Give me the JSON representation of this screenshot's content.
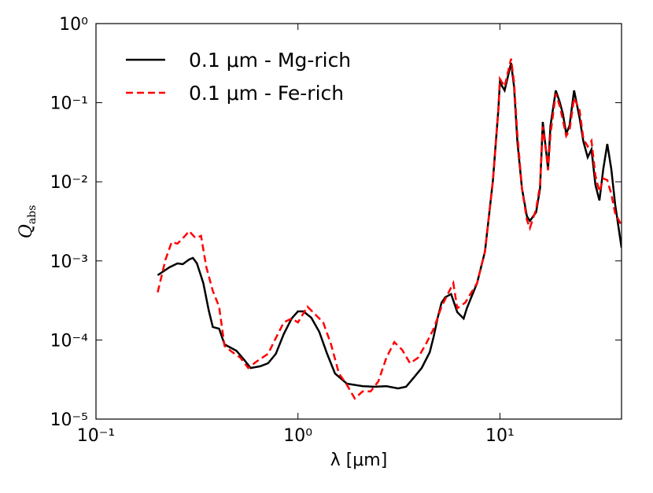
{
  "chart_data": {
    "type": "line",
    "xlabel": "λ [μm]",
    "ylabel": "Qabs",
    "xscale": "log",
    "yscale": "log",
    "xlim": [
      0.1,
      40
    ],
    "ylim": [
      1e-05,
      1
    ],
    "xticks": [
      {
        "value": 0.1,
        "label": "10⁻¹"
      },
      {
        "value": 1,
        "label": "10⁰"
      },
      {
        "value": 10,
        "label": "10¹"
      }
    ],
    "yticks": [
      {
        "value": 1e-05,
        "label": "10⁻⁵"
      },
      {
        "value": 0.0001,
        "label": "10⁻⁴"
      },
      {
        "value": 0.001,
        "label": "10⁻³"
      },
      {
        "value": 0.01,
        "label": "10⁻²"
      },
      {
        "value": 0.1,
        "label": "10⁻¹"
      },
      {
        "value": 1,
        "label": "10⁰"
      }
    ],
    "legend": "upper left",
    "series": [
      {
        "name": "0.1 μm - Mg-rich",
        "color": "#000000",
        "dash": "solid",
        "x": [
          0.202,
          0.231,
          0.253,
          0.269,
          0.289,
          0.302,
          0.316,
          0.34,
          0.362,
          0.379,
          0.407,
          0.433,
          0.496,
          0.542,
          0.583,
          0.649,
          0.711,
          0.777,
          0.851,
          0.931,
          1.0,
          1.065,
          1.165,
          1.275,
          1.395,
          1.526,
          1.747,
          2.09,
          2.39,
          2.74,
          3.13,
          3.43,
          3.75,
          4.1,
          4.49,
          4.7,
          4.91,
          5.14,
          5.37,
          5.73,
          6.15,
          6.61,
          6.86,
          7.71,
          8.43,
          9.23,
          9.82,
          10.0,
          10.55,
          11.35,
          11.75,
          12.2,
          12.86,
          13.6,
          14.07,
          15.1,
          15.8,
          16.3,
          16.9,
          17.3,
          17.8,
          18.9,
          19.8,
          20.5,
          21.3,
          22.1,
          23.3,
          24.8,
          25.9,
          27.2,
          28.4,
          29.7,
          31.1,
          32.5,
          34.0,
          35.6,
          37.2,
          40
        ],
        "values": [
          0.000659,
          0.000828,
          0.000929,
          0.000908,
          0.00104,
          0.00109,
          0.000929,
          0.000525,
          0.000235,
          0.000146,
          0.000139,
          8.8e-05,
          7.3e-05,
          5.6e-05,
          4.43e-05,
          4.64e-05,
          5.08e-05,
          6.68e-05,
          0.000119,
          0.000187,
          0.00023,
          0.00023,
          0.000191,
          0.000127,
          6.68e-05,
          3.77e-05,
          2.8e-05,
          2.61e-05,
          2.56e-05,
          2.61e-05,
          2.44e-05,
          2.56e-05,
          3.36e-05,
          4.43e-05,
          7e-05,
          0.000111,
          0.000187,
          0.000296,
          0.000348,
          0.000381,
          0.000225,
          0.000187,
          0.000252,
          0.000525,
          0.00131,
          0.0103,
          0.0807,
          0.18,
          0.143,
          0.318,
          0.16,
          0.0323,
          0.00818,
          0.00367,
          0.0032,
          0.00411,
          0.00818,
          0.0572,
          0.0257,
          0.0145,
          0.0511,
          0.143,
          0.101,
          0.0719,
          0.0406,
          0.0511,
          0.143,
          0.0641,
          0.0323,
          0.0204,
          0.0257,
          0.00917,
          0.0058,
          0.0145,
          0.0301,
          0.0145,
          0.00517,
          0.00147
        ]
      },
      {
        "name": "0.1 μm - Fe-rich",
        "color": "#ff0000",
        "dash": "dashed",
        "x": [
          0.202,
          0.221,
          0.237,
          0.253,
          0.276,
          0.289,
          0.311,
          0.331,
          0.352,
          0.379,
          0.407,
          0.433,
          0.474,
          0.519,
          0.567,
          0.621,
          0.711,
          0.777,
          0.851,
          0.931,
          1.0,
          1.114,
          1.219,
          1.334,
          1.459,
          1.596,
          1.747,
          1.91,
          2.09,
          2.29,
          2.5,
          2.74,
          3.0,
          3.28,
          3.59,
          3.93,
          4.29,
          4.7,
          5.14,
          5.62,
          5.88,
          6.15,
          6.73,
          7.71,
          8.43,
          9.23,
          9.82,
          10.0,
          10.55,
          11.35,
          11.75,
          12.2,
          12.86,
          13.6,
          14.07,
          15.1,
          15.8,
          16.3,
          16.9,
          17.3,
          17.8,
          18.9,
          19.8,
          20.5,
          21.3,
          22.1,
          23.3,
          24.8,
          25.9,
          27.2,
          28.4,
          29.7,
          31.1,
          32.5,
          34.0,
          35.6,
          37.2,
          40
        ],
        "values": [
          0.0004,
          0.00104,
          0.00173,
          0.00165,
          0.00207,
          0.00238,
          0.00195,
          0.00207,
          0.000828,
          0.000417,
          0.000264,
          8.4e-05,
          7e-05,
          5.96e-05,
          4.43e-05,
          5.3e-05,
          6.68e-05,
          0.000106,
          0.000167,
          0.000187,
          0.000167,
          0.000264,
          0.00021,
          0.000167,
          8.8e-05,
          3.77e-05,
          2.71e-05,
          1.82e-05,
          2.24e-05,
          2.24e-05,
          3e-05,
          5.96e-05,
          9.4e-05,
          7.5e-05,
          5.08e-05,
          5.96e-05,
          8.8e-05,
          0.000139,
          0.000264,
          0.000417,
          0.000525,
          0.000252,
          0.000296,
          0.000525,
          0.00131,
          0.0103,
          0.0807,
          0.2,
          0.16,
          0.36,
          0.18,
          0.04,
          0.00818,
          0.0033,
          0.0026,
          0.0045,
          0.009,
          0.05,
          0.025,
          0.014,
          0.04,
          0.13,
          0.09,
          0.06,
          0.038,
          0.045,
          0.115,
          0.08,
          0.035,
          0.028,
          0.033,
          0.012,
          0.0075,
          0.011,
          0.0105,
          0.007,
          0.004,
          0.0028
        ]
      }
    ]
  }
}
